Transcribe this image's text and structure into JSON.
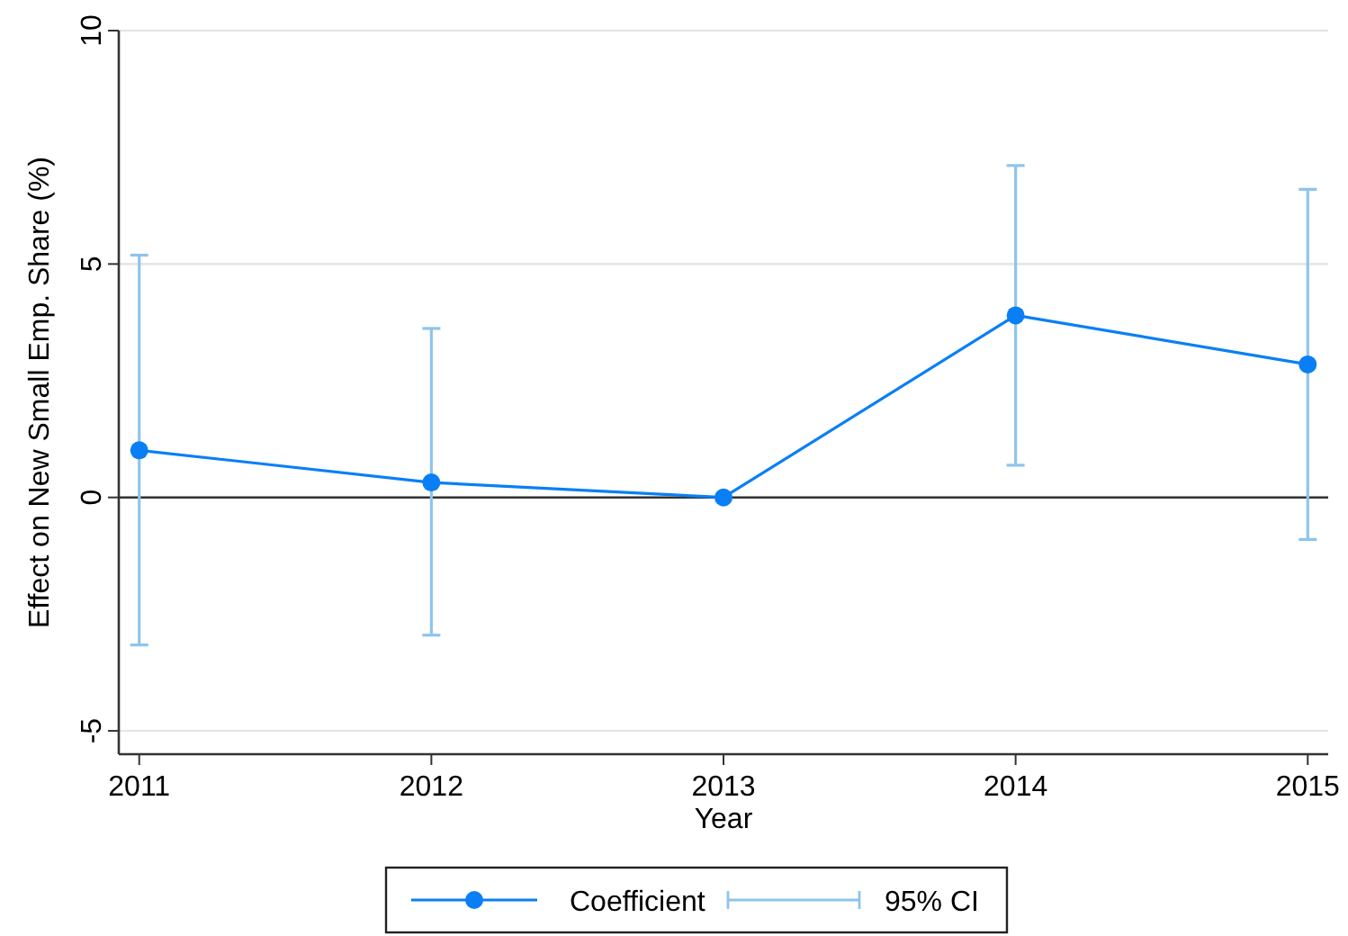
{
  "chart_data": {
    "type": "line",
    "xlabel": "Year",
    "ylabel": "Effect on New Small Emp. Share (%)",
    "x": [
      2011,
      2012,
      2013,
      2014,
      2015
    ],
    "series": [
      {
        "name": "Coefficient",
        "color": "#0a7ff5",
        "values": [
          1.01,
          0.32,
          0,
          3.9,
          2.85
        ],
        "errors": [
          [
            -3.16,
            5.19
          ],
          [
            -2.95,
            3.62
          ],
          null,
          [
            0.69,
            7.11
          ],
          [
            -0.9,
            6.6
          ]
        ]
      }
    ],
    "annotations": [
      "95% CI"
    ],
    "xlim": [
      2010.93,
      2015.07
    ],
    "xticks": [
      2011,
      2012,
      2013,
      2014,
      2015
    ],
    "ylim": [
      -5.5,
      10
    ],
    "yticks": [
      -5,
      0,
      5,
      10
    ],
    "ref_lines": [
      {
        "axis": "y",
        "value": 0,
        "color": "#333333"
      }
    ],
    "grid": "y",
    "legend": "bottom",
    "marker": "circle",
    "line_style": "solid"
  }
}
